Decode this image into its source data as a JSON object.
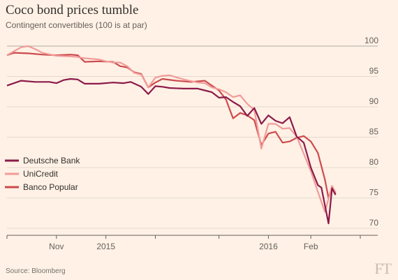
{
  "title": "Coco bond prices tumble",
  "subtitle": "Contingent convertibles (100 is at par)",
  "source": "Source: Bloomberg",
  "logo": "FT",
  "chart_data": {
    "type": "line",
    "title": "Coco bond prices tumble",
    "subtitle": "Contingent convertibles (100 is at par)",
    "ylim": [
      70,
      100
    ],
    "yticks": [
      100,
      95,
      90,
      85,
      80,
      75,
      70
    ],
    "xlim": [
      0,
      100
    ],
    "xticks": [
      {
        "x": 14,
        "label": "Nov"
      },
      {
        "x": 28,
        "label": "2015"
      },
      {
        "x": 74,
        "label": "2016"
      },
      {
        "x": 86,
        "label": "Feb"
      }
    ],
    "gridlines": true,
    "legend_position": "left",
    "series": [
      {
        "name": "Deutsche Bank",
        "color": "#8b1a4a",
        "points": [
          [
            0,
            93.5
          ],
          [
            4,
            94.3
          ],
          [
            8,
            94.1
          ],
          [
            12,
            94.1
          ],
          [
            14,
            93.9
          ],
          [
            16,
            94.4
          ],
          [
            18,
            94.6
          ],
          [
            20,
            94.5
          ],
          [
            22,
            93.8
          ],
          [
            26,
            93.8
          ],
          [
            30,
            94
          ],
          [
            33,
            93.9
          ],
          [
            35,
            94.1
          ],
          [
            38,
            93.3
          ],
          [
            40,
            92.1
          ],
          [
            42,
            93.4
          ],
          [
            44,
            93.3
          ],
          [
            46,
            93.1
          ],
          [
            50,
            93
          ],
          [
            54,
            93
          ],
          [
            56,
            92.7
          ],
          [
            58,
            92.4
          ],
          [
            60,
            91.5
          ],
          [
            62,
            91.6
          ],
          [
            64,
            90.8
          ],
          [
            66,
            90.1
          ],
          [
            68,
            88.5
          ],
          [
            70,
            89.8
          ],
          [
            72,
            87.2
          ],
          [
            74,
            88.6
          ],
          [
            76,
            87.7
          ],
          [
            78,
            87.3
          ],
          [
            80,
            88.3
          ],
          [
            82,
            85.1
          ],
          [
            84,
            84.1
          ],
          [
            86,
            80
          ],
          [
            88,
            77.1
          ],
          [
            89,
            76.7
          ],
          [
            91,
            70.8
          ],
          [
            92,
            76.6
          ],
          [
            93,
            75.5
          ]
        ]
      },
      {
        "name": "UniCredit",
        "color": "#f19b9a",
        "points": [
          [
            0,
            98.5
          ],
          [
            4,
            99.8
          ],
          [
            6,
            100
          ],
          [
            8,
            99.5
          ],
          [
            10,
            98.9
          ],
          [
            14,
            98.4
          ],
          [
            18,
            98.3
          ],
          [
            20,
            98.2
          ],
          [
            22,
            98
          ],
          [
            26,
            97.8
          ],
          [
            28,
            97.5
          ],
          [
            30,
            97.3
          ],
          [
            32,
            97.3
          ],
          [
            34,
            96.7
          ],
          [
            36,
            95.6
          ],
          [
            38,
            95.3
          ],
          [
            40,
            93.2
          ],
          [
            42,
            94.8
          ],
          [
            44,
            95.1
          ],
          [
            46,
            95.2
          ],
          [
            50,
            94.5
          ],
          [
            54,
            94
          ],
          [
            56,
            93.9
          ],
          [
            58,
            93.2
          ],
          [
            60,
            92.9
          ],
          [
            62,
            92.4
          ],
          [
            64,
            91.6
          ],
          [
            66,
            91.9
          ],
          [
            68,
            90.5
          ],
          [
            70,
            89.5
          ],
          [
            72,
            83.1
          ],
          [
            74,
            87.2
          ],
          [
            76,
            87.2
          ],
          [
            78,
            86.4
          ],
          [
            80,
            86.5
          ],
          [
            82,
            85.1
          ],
          [
            84,
            82.3
          ],
          [
            86,
            79.4
          ],
          [
            88,
            76
          ],
          [
            90,
            72.7
          ],
          [
            92,
            77
          ],
          [
            93,
            75.9
          ]
        ]
      },
      {
        "name": "Banco Popular",
        "color": "#cd4a4d",
        "points": [
          [
            0,
            98.5
          ],
          [
            2,
            98.9
          ],
          [
            6,
            98.8
          ],
          [
            10,
            98.6
          ],
          [
            14,
            98.5
          ],
          [
            18,
            98.6
          ],
          [
            20,
            98.5
          ],
          [
            22,
            97.4
          ],
          [
            26,
            97.5
          ],
          [
            30,
            97.4
          ],
          [
            32,
            96.7
          ],
          [
            34,
            96.5
          ],
          [
            36,
            95.7
          ],
          [
            38,
            95.4
          ],
          [
            40,
            93.2
          ],
          [
            42,
            94
          ],
          [
            44,
            94.6
          ],
          [
            48,
            94.3
          ],
          [
            52,
            94.1
          ],
          [
            56,
            94.3
          ],
          [
            58,
            93.5
          ],
          [
            60,
            92.7
          ],
          [
            62,
            91.2
          ],
          [
            64,
            88.1
          ],
          [
            66,
            89
          ],
          [
            68,
            88.6
          ],
          [
            70,
            87.8
          ],
          [
            72,
            83.7
          ],
          [
            74,
            85.6
          ],
          [
            76,
            85.9
          ],
          [
            78,
            84.1
          ],
          [
            80,
            84.3
          ],
          [
            82,
            84.9
          ],
          [
            84,
            85.2
          ],
          [
            86,
            84.3
          ],
          [
            88,
            82.4
          ],
          [
            90,
            78
          ],
          [
            91,
            75
          ],
          [
            92,
            76.6
          ],
          [
            93,
            75.7
          ]
        ]
      }
    ]
  }
}
